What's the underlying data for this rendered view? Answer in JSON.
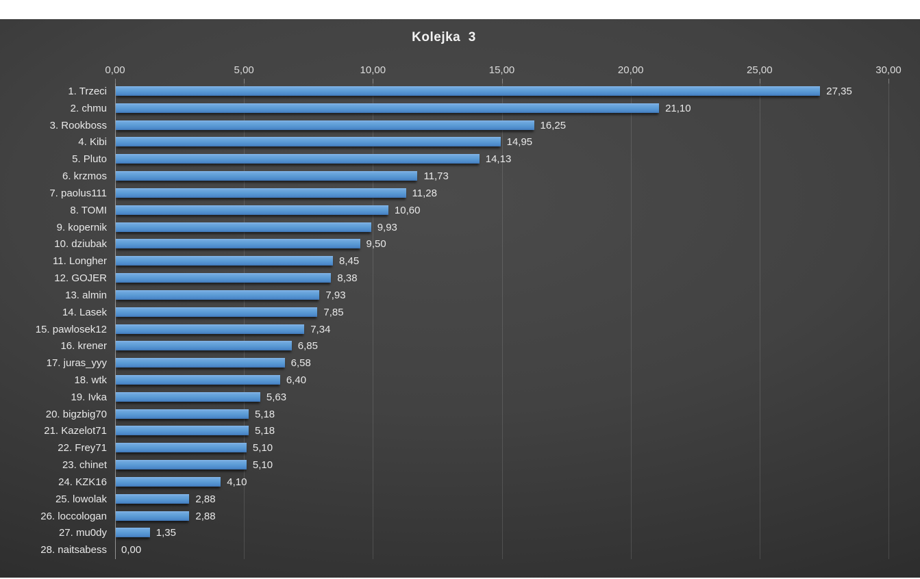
{
  "chart_data": {
    "type": "bar",
    "orientation": "horizontal",
    "title": "Kolejka  3",
    "categories": [
      "1. Trzeci",
      "2. chmu",
      "3. Rookboss",
      "4. Kibi",
      "5. Pluto",
      "6. krzmos",
      "7. paolus111",
      "8. TOMI",
      "9. kopernik",
      "10. dziubak",
      "11. Longher",
      "12. GOJER",
      "13. almin",
      "14. Lasek",
      "15. pawlosek12",
      "16. krener",
      "17. juras_yyy",
      "18. wtk",
      "19. Ivka",
      "20. bigzbig70",
      "21. Kazelot71",
      "22. Frey71",
      "23. chinet",
      "24. KZK16",
      "25. lowolak",
      "26. loccologan",
      "27. mu0dy",
      "28. naitsabess"
    ],
    "values": [
      27.35,
      21.1,
      16.25,
      14.95,
      14.13,
      11.73,
      11.28,
      10.6,
      9.93,
      9.5,
      8.45,
      8.38,
      7.93,
      7.85,
      7.34,
      6.85,
      6.58,
      6.4,
      5.63,
      5.18,
      5.18,
      5.1,
      5.1,
      4.1,
      2.88,
      2.88,
      1.35,
      0.0
    ],
    "value_labels": [
      "27,35",
      "21,10",
      "16,25",
      "14,95",
      "14,13",
      "11,73",
      "11,28",
      "10,60",
      "9,93",
      "9,50",
      "8,45",
      "8,38",
      "7,93",
      "7,85",
      "7,34",
      "6,85",
      "6,58",
      "6,40",
      "5,63",
      "5,18",
      "5,18",
      "5,10",
      "5,10",
      "4,10",
      "2,88",
      "2,88",
      "1,35",
      "0,00"
    ],
    "x_tick_labels": [
      "0,00",
      "5,00",
      "10,00",
      "15,00",
      "20,00",
      "25,00",
      "30,00"
    ],
    "x_tick_values": [
      0,
      5,
      10,
      15,
      20,
      25,
      30
    ],
    "xlim": [
      0,
      30
    ],
    "grid": "vertical-major",
    "legend": "none",
    "xlabel": "",
    "ylabel": "",
    "colors": {
      "bar": "#5B9BD5",
      "bar_highlight": "#85B6E7",
      "bar_shade": "#3F76B6",
      "background_center": "#4B4B4B",
      "background_edge": "#252525",
      "page_margin": "#FFFFFF",
      "text": "#E9E9E9",
      "gridline": "rgba(255,255,255,0.13)"
    }
  }
}
